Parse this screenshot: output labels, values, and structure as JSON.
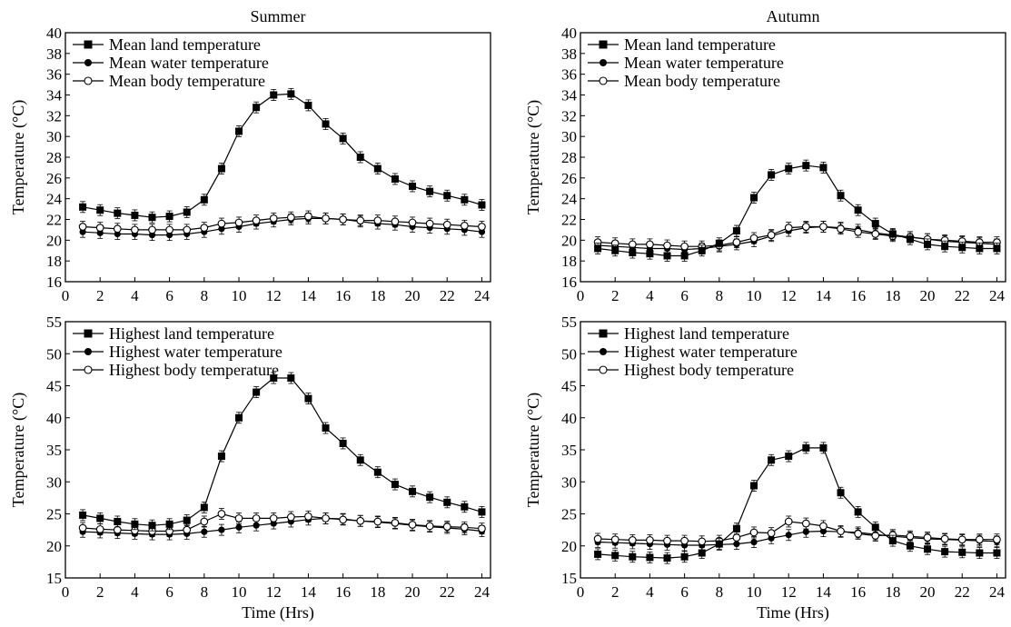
{
  "chart_data": [
    {
      "type": "line",
      "title": "Summer",
      "xlabel": "",
      "ylabel": "Temperature (°C)",
      "xlim": [
        0,
        24.5
      ],
      "ylim": [
        16,
        40
      ],
      "xticks": [
        0,
        2,
        4,
        6,
        8,
        10,
        12,
        14,
        16,
        18,
        20,
        22,
        24
      ],
      "yticks": [
        16,
        18,
        20,
        22,
        24,
        26,
        28,
        30,
        32,
        34,
        36,
        38,
        40
      ],
      "grid": false,
      "legend_position": "top-left",
      "x": [
        1,
        2,
        3,
        4,
        5,
        6,
        7,
        8,
        9,
        10,
        11,
        12,
        13,
        14,
        15,
        16,
        17,
        18,
        19,
        20,
        21,
        22,
        23,
        24
      ],
      "series": [
        {
          "name": "Mean land temperature",
          "marker": "square",
          "values": [
            23.2,
            22.9,
            22.6,
            22.4,
            22.2,
            22.3,
            22.7,
            23.9,
            26.9,
            30.5,
            32.8,
            34.0,
            34.1,
            33.0,
            31.2,
            29.8,
            28.0,
            26.9,
            25.9,
            25.2,
            24.7,
            24.3,
            23.9,
            23.4
          ]
        },
        {
          "name": "Mean water temperature",
          "marker": "filled-circle",
          "values": [
            20.8,
            20.7,
            20.6,
            20.6,
            20.5,
            20.5,
            20.6,
            20.8,
            21.1,
            21.3,
            21.6,
            21.8,
            22.0,
            22.1,
            22.1,
            22.0,
            21.8,
            21.6,
            21.5,
            21.3,
            21.2,
            21.1,
            21.0,
            20.8
          ]
        },
        {
          "name": "Mean body temperature",
          "marker": "open-circle",
          "values": [
            21.3,
            21.2,
            21.1,
            21.0,
            21.0,
            21.0,
            21.0,
            21.2,
            21.6,
            21.7,
            21.9,
            22.1,
            22.2,
            22.3,
            22.1,
            22.0,
            21.9,
            21.9,
            21.8,
            21.7,
            21.6,
            21.5,
            21.4,
            21.3
          ]
        }
      ]
    },
    {
      "type": "line",
      "title": "Autumn",
      "xlabel": "",
      "ylabel": "Temperature (°C)",
      "xlim": [
        0,
        24.5
      ],
      "ylim": [
        16,
        40
      ],
      "xticks": [
        0,
        2,
        4,
        6,
        8,
        10,
        12,
        14,
        16,
        18,
        20,
        22,
        24
      ],
      "yticks": [
        16,
        18,
        20,
        22,
        24,
        26,
        28,
        30,
        32,
        34,
        36,
        38,
        40
      ],
      "grid": false,
      "legend_position": "top-left",
      "x": [
        1,
        2,
        3,
        4,
        5,
        6,
        7,
        8,
        9,
        10,
        11,
        12,
        13,
        14,
        15,
        16,
        17,
        18,
        19,
        20,
        21,
        22,
        23,
        24
      ],
      "series": [
        {
          "name": "Mean land temperature",
          "marker": "square",
          "values": [
            19.2,
            19.0,
            18.8,
            18.7,
            18.5,
            18.5,
            19.0,
            19.7,
            20.9,
            24.1,
            26.3,
            26.9,
            27.2,
            27.0,
            24.3,
            22.9,
            21.6,
            20.6,
            20.1,
            19.6,
            19.4,
            19.3,
            19.2,
            19.2
          ]
        },
        {
          "name": "Mean water temperature",
          "marker": "filled-circle",
          "values": [
            19.5,
            19.4,
            19.3,
            19.2,
            19.2,
            19.1,
            19.2,
            19.4,
            19.6,
            19.9,
            20.4,
            20.9,
            21.2,
            21.3,
            21.2,
            21.0,
            20.7,
            20.5,
            20.3,
            20.1,
            19.9,
            19.8,
            19.7,
            19.6
          ]
        },
        {
          "name": "Mean body temperature",
          "marker": "open-circle",
          "values": [
            19.8,
            19.7,
            19.6,
            19.6,
            19.5,
            19.4,
            19.4,
            19.5,
            19.8,
            20.2,
            20.5,
            21.2,
            21.3,
            21.3,
            21.1,
            20.8,
            20.6,
            20.4,
            20.3,
            20.1,
            20.0,
            19.9,
            19.8,
            19.8
          ]
        }
      ]
    },
    {
      "type": "line",
      "title": "",
      "xlabel": "Time (Hrs)",
      "ylabel": "Temperature (°C)",
      "xlim": [
        0,
        24.5
      ],
      "ylim": [
        15,
        55
      ],
      "xticks": [
        0,
        2,
        4,
        6,
        8,
        10,
        12,
        14,
        16,
        18,
        20,
        22,
        24
      ],
      "yticks": [
        15,
        20,
        25,
        30,
        35,
        40,
        45,
        50,
        55
      ],
      "grid": false,
      "legend_position": "top-left",
      "x": [
        1,
        2,
        3,
        4,
        5,
        6,
        7,
        8,
        9,
        10,
        11,
        12,
        13,
        14,
        15,
        16,
        17,
        18,
        19,
        20,
        21,
        22,
        23,
        24
      ],
      "series": [
        {
          "name": "Highest land temperature",
          "marker": "square",
          "values": [
            24.8,
            24.3,
            23.8,
            23.4,
            23.2,
            23.4,
            24.0,
            26.0,
            34.0,
            40.0,
            44.0,
            46.2,
            46.2,
            43.0,
            38.4,
            36.0,
            33.4,
            31.5,
            29.6,
            28.5,
            27.6,
            26.8,
            26.1,
            25.3
          ]
        },
        {
          "name": "Highest water temperature",
          "marker": "filled-circle",
          "values": [
            22.2,
            22.1,
            22.0,
            21.9,
            21.8,
            21.8,
            21.9,
            22.2,
            22.5,
            22.9,
            23.2,
            23.5,
            23.8,
            24.1,
            24.3,
            24.2,
            23.9,
            23.7,
            23.5,
            23.2,
            23.0,
            22.8,
            22.6,
            22.3
          ]
        },
        {
          "name": "Highest body temperature",
          "marker": "open-circle",
          "values": [
            22.8,
            22.6,
            22.5,
            22.4,
            22.3,
            22.3,
            22.5,
            23.8,
            25.0,
            24.3,
            24.3,
            24.3,
            24.5,
            24.6,
            24.3,
            24.1,
            23.9,
            23.8,
            23.6,
            23.3,
            23.1,
            23.0,
            22.9,
            22.7
          ]
        }
      ]
    },
    {
      "type": "line",
      "title": "",
      "xlabel": "Time (Hrs)",
      "ylabel": "Temperature (°C)",
      "xlim": [
        0,
        24.5
      ],
      "ylim": [
        15,
        55
      ],
      "xticks": [
        0,
        2,
        4,
        6,
        8,
        10,
        12,
        14,
        16,
        18,
        20,
        22,
        24
      ],
      "yticks": [
        15,
        20,
        25,
        30,
        35,
        40,
        45,
        50,
        55
      ],
      "grid": false,
      "legend_position": "top-left",
      "x": [
        1,
        2,
        3,
        4,
        5,
        6,
        7,
        8,
        9,
        10,
        11,
        12,
        13,
        14,
        15,
        16,
        17,
        18,
        19,
        20,
        21,
        22,
        23,
        24
      ],
      "series": [
        {
          "name": "Highest land temperature",
          "marker": "square",
          "values": [
            18.7,
            18.5,
            18.3,
            18.2,
            18.1,
            18.3,
            18.9,
            20.3,
            22.7,
            29.4,
            33.4,
            34.0,
            35.3,
            35.3,
            28.3,
            25.3,
            22.9,
            20.8,
            20.0,
            19.5,
            19.1,
            19.0,
            18.9,
            18.9
          ]
        },
        {
          "name": "Highest water temperature",
          "marker": "filled-circle",
          "values": [
            20.6,
            20.5,
            20.4,
            20.3,
            20.2,
            20.1,
            20.1,
            20.2,
            20.3,
            20.6,
            21.2,
            21.7,
            22.2,
            22.3,
            22.2,
            22.1,
            21.8,
            21.5,
            21.3,
            21.1,
            21.0,
            20.9,
            20.8,
            20.7
          ]
        },
        {
          "name": "Highest body temperature",
          "marker": "open-circle",
          "values": [
            21.1,
            21.0,
            20.9,
            20.9,
            20.8,
            20.8,
            20.7,
            20.8,
            21.3,
            22.1,
            22.0,
            23.8,
            23.5,
            23.1,
            22.3,
            21.9,
            21.6,
            21.7,
            21.5,
            21.3,
            21.1,
            21.0,
            21.0,
            21.0
          ]
        }
      ]
    }
  ]
}
